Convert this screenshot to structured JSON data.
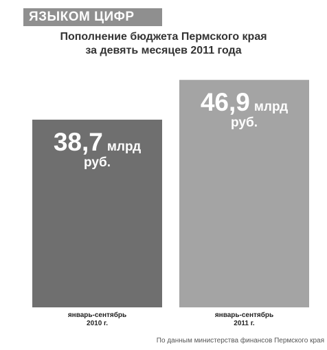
{
  "header": {
    "label": "ЯЗЫКОМ ЦИФР"
  },
  "title_lines": [
    "Пополнение бюджета Пермского края",
    "за девять месяцев 2011 года"
  ],
  "source": "По данным министерства финансов Пермского края",
  "colors": {
    "bar_2010": "#6f6f6f",
    "bar_2011": "#a4a4a4",
    "header_band": "#8f8f8f"
  },
  "chart_data": {
    "type": "bar",
    "title": "Пополнение бюджета Пермского края за девять месяцев 2011 года",
    "categories": [
      {
        "line1": "январь-сентябрь",
        "line2": "2010 г."
      },
      {
        "line1": "январь-сентябрь",
        "line2": "2011 г."
      }
    ],
    "values": [
      38.7,
      46.9
    ],
    "value_labels": [
      {
        "number": "38,7",
        "unit1": "млрд",
        "unit2": "руб."
      },
      {
        "number": "46,9",
        "unit1": "млрд",
        "unit2": "руб."
      }
    ],
    "ylim": [
      0,
      56
    ]
  }
}
